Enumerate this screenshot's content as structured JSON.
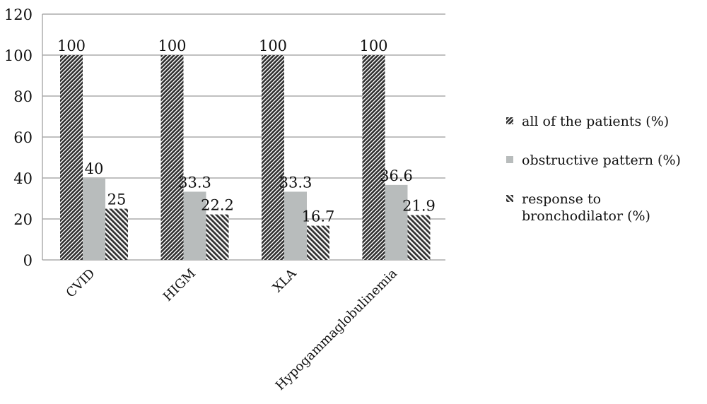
{
  "chart_data": {
    "type": "bar",
    "categories": [
      "CVID",
      "HIGM",
      "XLA",
      "Hypogammaglobulinemia"
    ],
    "series": [
      {
        "name": "all of the patients (%)",
        "values": [
          100,
          100,
          100,
          100
        ],
        "color": "#333333"
      },
      {
        "name": "obstructive pattern (%)",
        "values": [
          40,
          33.3,
          33.3,
          36.6
        ],
        "color": "#b8bcbc"
      },
      {
        "name": "response to bronchodilator (%)",
        "values": [
          25,
          22.2,
          16.7,
          21.9
        ],
        "color": "#3a3a3a"
      }
    ],
    "data_labels": [
      [
        "100",
        "100",
        "100",
        "100"
      ],
      [
        "40",
        "33.3",
        "33.3",
        "36.6"
      ],
      [
        "25",
        "22.2",
        "16.7",
        "21.9"
      ]
    ],
    "ylim": [
      0,
      120
    ],
    "yticks": [
      "0",
      "20",
      "40",
      "60",
      "80",
      "100",
      "120"
    ],
    "title": "",
    "xlabel": "",
    "ylabel": "",
    "grid": true,
    "legend_position": "right",
    "legend": {
      "items": [
        {
          "lines": [
            "all of the patients (%)"
          ]
        },
        {
          "lines": [
            "obstructive pattern (%)"
          ]
        },
        {
          "lines": [
            "response to",
            "bronchodilator (%)"
          ]
        }
      ]
    }
  }
}
